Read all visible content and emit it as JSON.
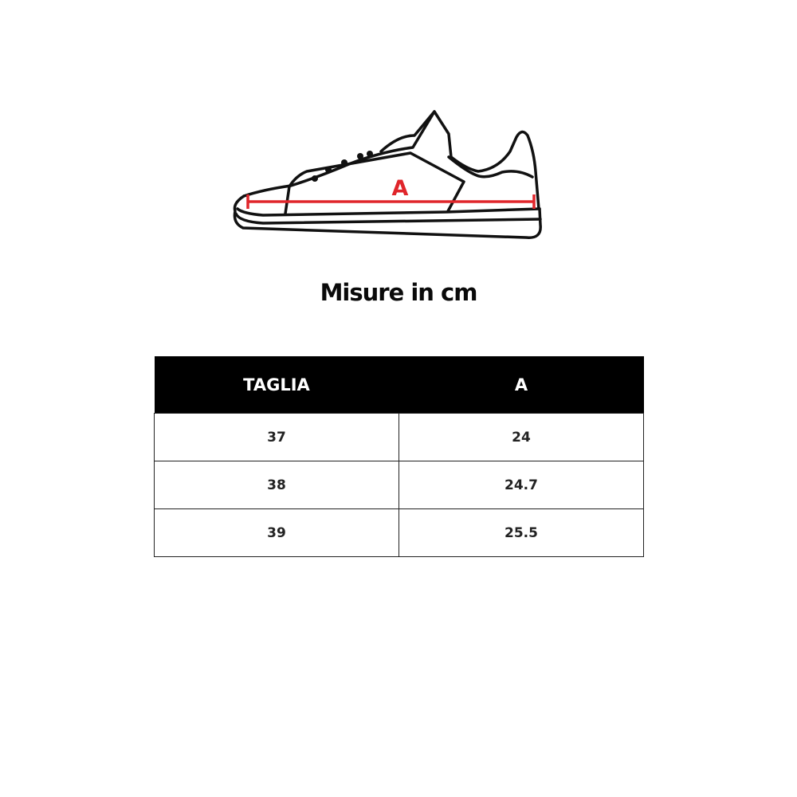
{
  "diagram": {
    "measure_label": "A",
    "measure_color": "#e0262b"
  },
  "title": "Misure in cm",
  "table": {
    "headers": [
      "TAGLIA",
      "A"
    ],
    "rows": [
      [
        "37",
        "24"
      ],
      [
        "38",
        "24.7"
      ],
      [
        "39",
        "25.5"
      ]
    ]
  }
}
